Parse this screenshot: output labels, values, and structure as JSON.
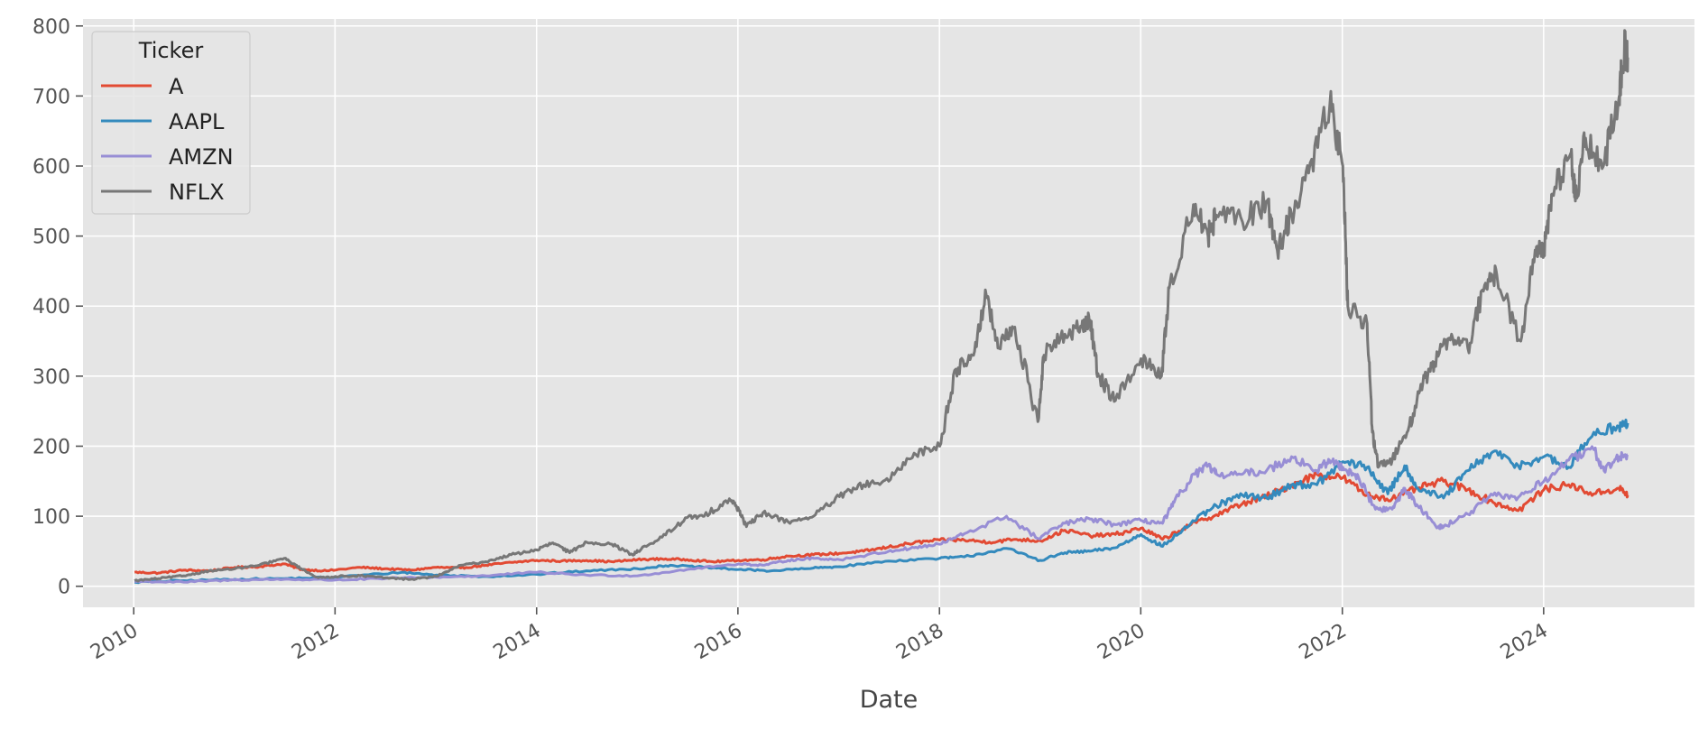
{
  "chart_data": {
    "type": "line",
    "title": "",
    "xlabel": "Date",
    "ylabel": "",
    "xlim": [
      "2009-07-01",
      "2025-07-01"
    ],
    "ylim": [
      -30,
      810
    ],
    "x_ticks": [
      "2010",
      "2012",
      "2014",
      "2016",
      "2018",
      "2020",
      "2022",
      "2024"
    ],
    "y_ticks": [
      0,
      100,
      200,
      300,
      400,
      500,
      600,
      700,
      800
    ],
    "grid": true,
    "legend": {
      "title": "Ticker",
      "placement": "top-left"
    },
    "series": [
      {
        "name": "A",
        "color": "#E24A33",
        "points": [
          [
            "2010-01-04",
            20
          ],
          [
            "2010-04-01",
            19
          ],
          [
            "2010-07-01",
            23
          ],
          [
            "2010-10-01",
            22
          ],
          [
            "2011-01-03",
            27
          ],
          [
            "2011-04-01",
            28
          ],
          [
            "2011-07-01",
            32
          ],
          [
            "2011-09-01",
            24
          ],
          [
            "2011-12-01",
            22
          ],
          [
            "2012-04-01",
            27
          ],
          [
            "2012-07-01",
            25
          ],
          [
            "2012-10-01",
            23
          ],
          [
            "2013-01-02",
            27
          ],
          [
            "2013-04-01",
            26
          ],
          [
            "2013-07-01",
            30
          ],
          [
            "2013-10-01",
            34
          ],
          [
            "2014-01-02",
            37
          ],
          [
            "2014-04-01",
            36
          ],
          [
            "2014-07-01",
            37
          ],
          [
            "2014-10-01",
            35
          ],
          [
            "2015-01-02",
            38
          ],
          [
            "2015-04-01",
            39
          ],
          [
            "2015-07-01",
            38
          ],
          [
            "2015-10-01",
            35
          ],
          [
            "2016-01-04",
            37
          ],
          [
            "2016-04-01",
            38
          ],
          [
            "2016-07-01",
            43
          ],
          [
            "2016-10-01",
            45
          ],
          [
            "2017-01-03",
            47
          ],
          [
            "2017-04-01",
            50
          ],
          [
            "2017-07-01",
            56
          ],
          [
            "2017-10-01",
            62
          ],
          [
            "2018-01-02",
            66
          ],
          [
            "2018-04-01",
            66
          ],
          [
            "2018-07-01",
            63
          ],
          [
            "2018-10-01",
            67
          ],
          [
            "2019-01-02",
            65
          ],
          [
            "2019-04-01",
            80
          ],
          [
            "2019-07-01",
            72
          ],
          [
            "2019-10-01",
            74
          ],
          [
            "2020-01-02",
            83
          ],
          [
            "2020-03-20",
            67
          ],
          [
            "2020-07-01",
            88
          ],
          [
            "2020-10-01",
            102
          ],
          [
            "2021-01-04",
            118
          ],
          [
            "2021-04-01",
            128
          ],
          [
            "2021-07-01",
            145
          ],
          [
            "2021-10-01",
            160
          ],
          [
            "2022-01-03",
            155
          ],
          [
            "2022-04-01",
            130
          ],
          [
            "2022-07-01",
            125
          ],
          [
            "2022-10-01",
            140
          ],
          [
            "2023-01-03",
            150
          ],
          [
            "2023-04-01",
            138
          ],
          [
            "2023-07-01",
            120
          ],
          [
            "2023-10-01",
            108
          ],
          [
            "2024-01-02",
            138
          ],
          [
            "2024-04-01",
            145
          ],
          [
            "2024-07-01",
            132
          ],
          [
            "2024-10-01",
            140
          ],
          [
            "2024-11-01",
            130
          ]
        ]
      },
      {
        "name": "AAPL",
        "color": "#348ABD",
        "points": [
          [
            "2010-01-04",
            6
          ],
          [
            "2010-07-01",
            8
          ],
          [
            "2011-01-03",
            10
          ],
          [
            "2011-07-01",
            11
          ],
          [
            "2012-01-03",
            13
          ],
          [
            "2012-09-01",
            20
          ],
          [
            "2013-01-02",
            16
          ],
          [
            "2013-07-01",
            14
          ],
          [
            "2014-01-02",
            17
          ],
          [
            "2014-07-01",
            22
          ],
          [
            "2015-01-02",
            25
          ],
          [
            "2015-05-01",
            30
          ],
          [
            "2015-09-01",
            27
          ],
          [
            "2016-01-04",
            24
          ],
          [
            "2016-05-01",
            22
          ],
          [
            "2016-10-01",
            26
          ],
          [
            "2017-01-03",
            28
          ],
          [
            "2017-07-01",
            36
          ],
          [
            "2018-01-02",
            40
          ],
          [
            "2018-04-01",
            42
          ],
          [
            "2018-09-01",
            54
          ],
          [
            "2019-01-02",
            37
          ],
          [
            "2019-04-01",
            48
          ],
          [
            "2019-07-01",
            50
          ],
          [
            "2019-10-01",
            55
          ],
          [
            "2020-01-02",
            74
          ],
          [
            "2020-03-20",
            57
          ],
          [
            "2020-07-01",
            90
          ],
          [
            "2020-10-01",
            115
          ],
          [
            "2021-01-04",
            130
          ],
          [
            "2021-04-01",
            126
          ],
          [
            "2021-07-01",
            145
          ],
          [
            "2021-10-01",
            145
          ],
          [
            "2022-01-03",
            178
          ],
          [
            "2022-04-01",
            170
          ],
          [
            "2022-06-15",
            132
          ],
          [
            "2022-08-15",
            172
          ],
          [
            "2022-10-01",
            140
          ],
          [
            "2023-01-03",
            126
          ],
          [
            "2023-04-01",
            165
          ],
          [
            "2023-07-01",
            192
          ],
          [
            "2023-10-01",
            172
          ],
          [
            "2024-01-02",
            185
          ],
          [
            "2024-04-01",
            170
          ],
          [
            "2024-07-01",
            220
          ],
          [
            "2024-10-01",
            228
          ],
          [
            "2024-11-01",
            233
          ]
        ]
      },
      {
        "name": "AMZN",
        "color": "#988ED5",
        "points": [
          [
            "2010-01-04",
            7
          ],
          [
            "2010-07-01",
            6
          ],
          [
            "2011-01-03",
            9
          ],
          [
            "2011-07-01",
            10
          ],
          [
            "2012-01-03",
            9
          ],
          [
            "2012-07-01",
            11
          ],
          [
            "2013-01-02",
            13
          ],
          [
            "2013-07-01",
            15
          ],
          [
            "2014-01-02",
            20
          ],
          [
            "2014-07-01",
            16
          ],
          [
            "2015-01-02",
            15
          ],
          [
            "2015-07-01",
            24
          ],
          [
            "2016-01-04",
            32
          ],
          [
            "2016-04-01",
            30
          ],
          [
            "2016-07-01",
            37
          ],
          [
            "2016-10-01",
            40
          ],
          [
            "2017-01-03",
            38
          ],
          [
            "2017-07-01",
            50
          ],
          [
            "2017-10-01",
            55
          ],
          [
            "2018-01-02",
            60
          ],
          [
            "2018-04-01",
            75
          ],
          [
            "2018-09-01",
            100
          ],
          [
            "2018-12-24",
            68
          ],
          [
            "2019-04-01",
            90
          ],
          [
            "2019-07-01",
            96
          ],
          [
            "2019-10-01",
            88
          ],
          [
            "2020-01-02",
            94
          ],
          [
            "2020-03-20",
            90
          ],
          [
            "2020-05-01",
            120
          ],
          [
            "2020-07-15",
            160
          ],
          [
            "2020-09-01",
            172
          ],
          [
            "2020-10-01",
            160
          ],
          [
            "2021-01-04",
            160
          ],
          [
            "2021-04-01",
            165
          ],
          [
            "2021-07-01",
            185
          ],
          [
            "2021-10-01",
            165
          ],
          [
            "2021-11-15",
            180
          ],
          [
            "2022-01-03",
            170
          ],
          [
            "2022-03-01",
            155
          ],
          [
            "2022-05-01",
            110
          ],
          [
            "2022-07-01",
            110
          ],
          [
            "2022-08-15",
            140
          ],
          [
            "2022-10-01",
            115
          ],
          [
            "2022-12-15",
            85
          ],
          [
            "2023-01-03",
            85
          ],
          [
            "2023-04-01",
            103
          ],
          [
            "2023-07-01",
            130
          ],
          [
            "2023-10-01",
            127
          ],
          [
            "2024-01-02",
            150
          ],
          [
            "2024-04-01",
            180
          ],
          [
            "2024-07-01",
            195
          ],
          [
            "2024-08-07",
            165
          ],
          [
            "2024-10-01",
            185
          ],
          [
            "2024-11-01",
            188
          ]
        ]
      },
      {
        "name": "NFLX",
        "color": "#777777",
        "points": [
          [
            "2010-01-04",
            8
          ],
          [
            "2010-04-01",
            11
          ],
          [
            "2010-07-01",
            15
          ],
          [
            "2010-10-01",
            22
          ],
          [
            "2011-01-03",
            25
          ],
          [
            "2011-04-01",
            30
          ],
          [
            "2011-07-01",
            40
          ],
          [
            "2011-09-01",
            25
          ],
          [
            "2011-11-01",
            12
          ],
          [
            "2012-01-03",
            14
          ],
          [
            "2012-04-01",
            15
          ],
          [
            "2012-07-01",
            12
          ],
          [
            "2012-10-01",
            10
          ],
          [
            "2013-01-02",
            14
          ],
          [
            "2013-04-01",
            30
          ],
          [
            "2013-07-01",
            35
          ],
          [
            "2013-10-01",
            45
          ],
          [
            "2014-01-02",
            52
          ],
          [
            "2014-03-01",
            62
          ],
          [
            "2014-05-01",
            48
          ],
          [
            "2014-07-01",
            63
          ],
          [
            "2014-10-01",
            60
          ],
          [
            "2014-12-15",
            45
          ],
          [
            "2015-01-02",
            50
          ],
          [
            "2015-04-01",
            70
          ],
          [
            "2015-07-01",
            98
          ],
          [
            "2015-09-01",
            100
          ],
          [
            "2015-12-01",
            125
          ],
          [
            "2016-01-04",
            110
          ],
          [
            "2016-02-01",
            85
          ],
          [
            "2016-04-01",
            105
          ],
          [
            "2016-07-01",
            92
          ],
          [
            "2016-10-01",
            100
          ],
          [
            "2017-01-03",
            128
          ],
          [
            "2017-04-01",
            145
          ],
          [
            "2017-07-01",
            150
          ],
          [
            "2017-10-01",
            190
          ],
          [
            "2018-01-02",
            200
          ],
          [
            "2018-03-01",
            310
          ],
          [
            "2018-05-01",
            330
          ],
          [
            "2018-06-20",
            415
          ],
          [
            "2018-08-01",
            340
          ],
          [
            "2018-10-01",
            370
          ],
          [
            "2018-12-24",
            235
          ],
          [
            "2019-01-15",
            330
          ],
          [
            "2019-04-01",
            360
          ],
          [
            "2019-06-01",
            370
          ],
          [
            "2019-07-01",
            380
          ],
          [
            "2019-08-01",
            300
          ],
          [
            "2019-10-01",
            265
          ],
          [
            "2020-01-02",
            325
          ],
          [
            "2020-03-16",
            300
          ],
          [
            "2020-04-15",
            430
          ],
          [
            "2020-07-10",
            545
          ],
          [
            "2020-09-01",
            500
          ],
          [
            "2020-10-01",
            530
          ],
          [
            "2021-01-04",
            520
          ],
          [
            "2021-04-01",
            550
          ],
          [
            "2021-05-10",
            480
          ],
          [
            "2021-07-01",
            530
          ],
          [
            "2021-09-01",
            590
          ],
          [
            "2021-11-17",
            690
          ],
          [
            "2022-01-03",
            600
          ],
          [
            "2022-01-21",
            400
          ],
          [
            "2022-04-01",
            375
          ],
          [
            "2022-04-20",
            220
          ],
          [
            "2022-05-11",
            170
          ],
          [
            "2022-07-01",
            180
          ],
          [
            "2022-09-01",
            230
          ],
          [
            "2022-10-20",
            290
          ],
          [
            "2022-12-01",
            320
          ],
          [
            "2023-02-01",
            360
          ],
          [
            "2023-04-01",
            340
          ],
          [
            "2023-06-01",
            430
          ],
          [
            "2023-07-15",
            445
          ],
          [
            "2023-10-10",
            350
          ],
          [
            "2023-12-01",
            480
          ],
          [
            "2024-01-02",
            480
          ],
          [
            "2024-02-01",
            560
          ],
          [
            "2024-04-10",
            620
          ],
          [
            "2024-04-25",
            550
          ],
          [
            "2024-06-01",
            640
          ],
          [
            "2024-08-05",
            600
          ],
          [
            "2024-10-01",
            700
          ],
          [
            "2024-10-20",
            770
          ],
          [
            "2024-11-01",
            755
          ]
        ]
      }
    ]
  }
}
